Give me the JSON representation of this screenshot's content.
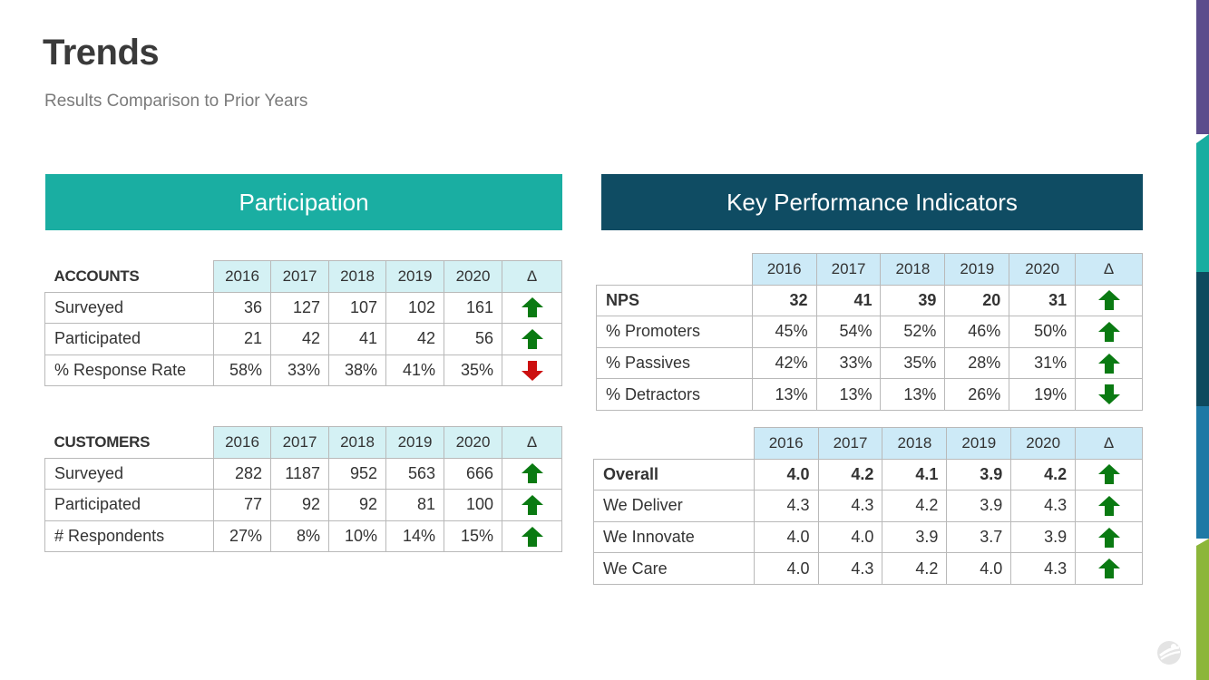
{
  "header": {
    "title": "Trends",
    "subtitle": "Results Comparison to Prior Years"
  },
  "participation": {
    "banner": "Participation",
    "accounts": {
      "section": "ACCOUNTS",
      "years": [
        "2016",
        "2017",
        "2018",
        "2019",
        "2020"
      ],
      "delta_header": "Δ",
      "rows": [
        {
          "label": "Surveyed",
          "values": [
            "36",
            "127",
            "107",
            "102",
            "161"
          ],
          "trend": "up"
        },
        {
          "label": "Participated",
          "values": [
            "21",
            "42",
            "41",
            "42",
            "56"
          ],
          "trend": "up"
        },
        {
          "label": "% Response Rate",
          "values": [
            "58%",
            "33%",
            "38%",
            "41%",
            "35%"
          ],
          "trend": "down"
        }
      ]
    },
    "customers": {
      "section": "CUSTOMERS",
      "years": [
        "2016",
        "2017",
        "2018",
        "2019",
        "2020"
      ],
      "delta_header": "Δ",
      "rows": [
        {
          "label": "Surveyed",
          "values": [
            "282",
            "1187",
            "952",
            "563",
            "666"
          ],
          "trend": "up"
        },
        {
          "label": "Participated",
          "values": [
            "77",
            "92",
            "92",
            "81",
            "100"
          ],
          "trend": "up"
        },
        {
          "label": "# Respondents",
          "values": [
            "27%",
            "8%",
            "10%",
            "14%",
            "15%"
          ],
          "trend": "up"
        }
      ]
    }
  },
  "kpi": {
    "banner": "Key Performance Indicators",
    "nps": {
      "years": [
        "2016",
        "2017",
        "2018",
        "2019",
        "2020"
      ],
      "delta_header": "Δ",
      "rows": [
        {
          "label": "NPS",
          "values": [
            "32",
            "41",
            "39",
            "20",
            "31"
          ],
          "trend": "up"
        },
        {
          "label": "% Promoters",
          "values": [
            "45%",
            "54%",
            "52%",
            "46%",
            "50%"
          ],
          "trend": "up"
        },
        {
          "label": "% Passives",
          "values": [
            "42%",
            "33%",
            "35%",
            "28%",
            "31%"
          ],
          "trend": "up"
        },
        {
          "label": "% Detractors",
          "values": [
            "13%",
            "13%",
            "13%",
            "26%",
            "19%"
          ],
          "trend": "down"
        }
      ]
    },
    "scores": {
      "years": [
        "2016",
        "2017",
        "2018",
        "2019",
        "2020"
      ],
      "delta_header": "Δ",
      "rows": [
        {
          "label": "Overall",
          "values": [
            "4.0",
            "4.2",
            "4.1",
            "3.9",
            "4.2"
          ],
          "trend": "up"
        },
        {
          "label": "We Deliver",
          "values": [
            "4.3",
            "4.3",
            "4.2",
            "3.9",
            "4.3"
          ],
          "trend": "up"
        },
        {
          "label": "We Innovate",
          "values": [
            "4.0",
            "4.0",
            "3.9",
            "3.7",
            "3.9"
          ],
          "trend": "up"
        },
        {
          "label": "We Care",
          "values": [
            "4.0",
            "4.3",
            "4.2",
            "4.0",
            "4.3"
          ],
          "trend": "up"
        }
      ]
    }
  },
  "colors": {
    "participation_banner": "#1aaea2",
    "kpi_banner": "#0f4c63",
    "arrow_up": "#0a7a12",
    "arrow_down_participation": "#cc1010",
    "arrow_down_kpi": "#0a7a12"
  },
  "icons": {
    "trend_up": "arrow-up-icon",
    "trend_down": "arrow-down-icon",
    "logo": "company-logo-icon"
  }
}
